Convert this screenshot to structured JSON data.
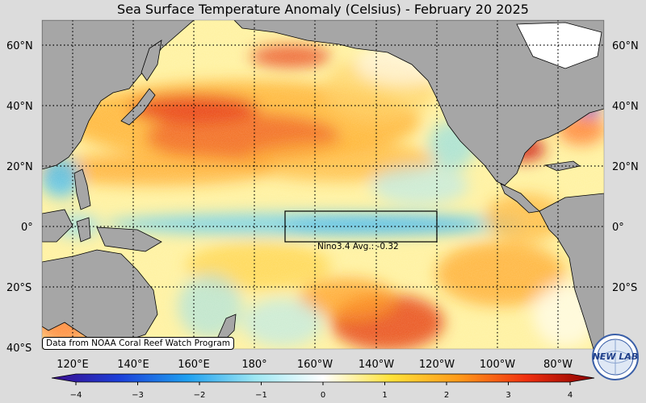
{
  "title": "Sea Surface Temperature Anomaly (Celsius) - February 20 2025",
  "lat_labels": [
    "60°N",
    "40°N",
    "20°N",
    "0°",
    "20°S",
    "40°S"
  ],
  "lon_labels": [
    "120°E",
    "140°E",
    "160°E",
    "180°",
    "160°W",
    "140°W",
    "120°W",
    "100°W",
    "80°W"
  ],
  "colorbar": {
    "ticks": [
      "−4",
      "−3",
      "−2",
      "−1",
      "0",
      "1",
      "2",
      "3",
      "4"
    ],
    "min": -4,
    "max": 4,
    "stops": [
      "#3b0c8c",
      "#1b3fd9",
      "#1fa0f0",
      "#9ee7f2",
      "#ffffff",
      "#ffe23a",
      "#ff9a1a",
      "#f03010",
      "#8a0000"
    ]
  },
  "credit": "Data from NOAA Coral Reef Watch Program",
  "nino_label": "Nino3.4 Avg.: -0.32",
  "logo_text": "NEW LAB",
  "colors": {
    "land": "#a6a6a6",
    "ocean_base": "#fff2a0",
    "frame_bg": "#dcdcdc"
  }
}
